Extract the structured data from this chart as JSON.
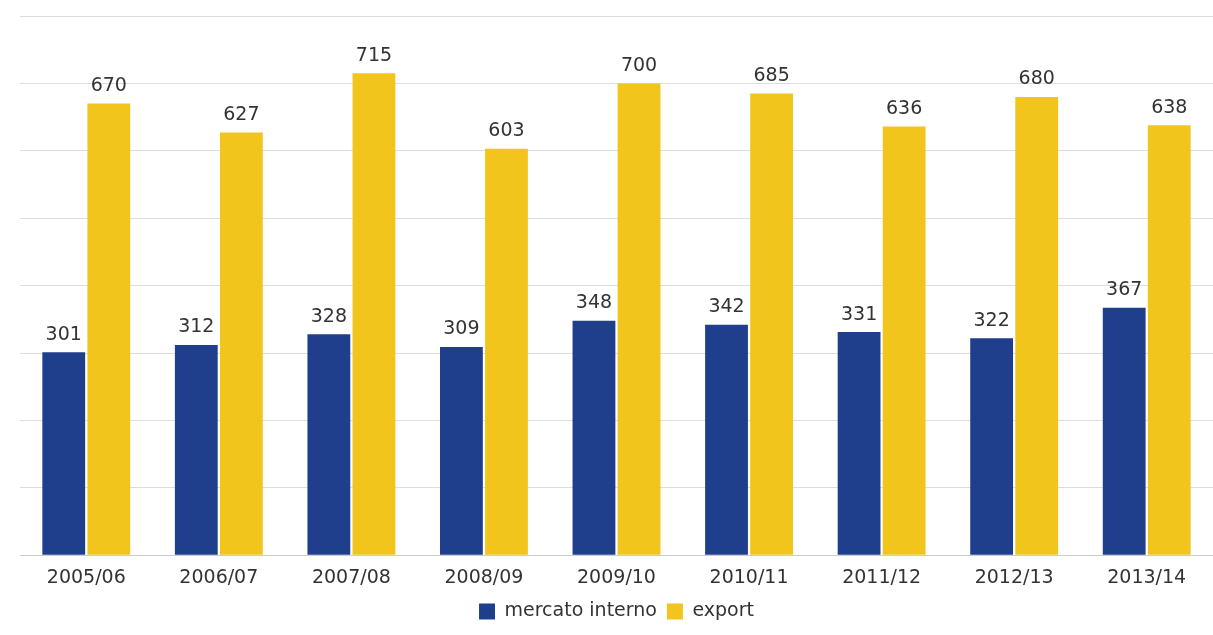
{
  "chart_data": {
    "type": "bar",
    "categories": [
      "2005/06",
      "2006/07",
      "2007/08",
      "2008/09",
      "2009/10",
      "2010/11",
      "2011/12",
      "2012/13",
      "2013/14"
    ],
    "series": [
      {
        "name": "mercato interno",
        "color": "#1f3f8c",
        "values": [
          301,
          312,
          328,
          309,
          348,
          342,
          331,
          322,
          367
        ]
      },
      {
        "name": "export",
        "color": "#f2c51c",
        "values": [
          670,
          627,
          715,
          603,
          700,
          685,
          636,
          680,
          638
        ]
      }
    ],
    "ylim": [
      0,
      800
    ],
    "yticks": [
      {
        "value": 0,
        "label": null
      },
      {
        "value": 100,
        "label": null
      },
      {
        "value": 200,
        "label": null
      },
      {
        "value": 300,
        "label": null
      },
      {
        "value": 400,
        "label": null
      },
      {
        "value": 500,
        "label": null
      },
      {
        "value": 600,
        "label": null
      },
      {
        "value": 700,
        "label": null
      },
      {
        "value": 800,
        "label": null
      }
    ],
    "grid": "y",
    "legend": "bottom",
    "tick_labels": "x",
    "data_labels": true
  }
}
